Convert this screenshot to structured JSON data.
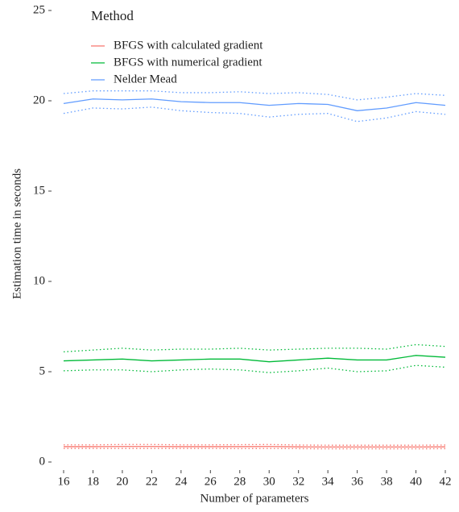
{
  "chart_data": {
    "type": "line",
    "x_label": "Number of parameters",
    "y_label": "Estimation time in seconds",
    "legend_title": "Method",
    "legend": "top-left",
    "grid": false,
    "x": [
      16,
      18,
      20,
      22,
      24,
      26,
      28,
      30,
      32,
      34,
      36,
      38,
      40,
      42
    ],
    "xlim": [
      16,
      42
    ],
    "xticks": [
      16,
      18,
      20,
      22,
      24,
      26,
      28,
      30,
      32,
      34,
      36,
      38,
      40,
      42
    ],
    "ylim": [
      0,
      25
    ],
    "yticks": [
      0,
      5,
      10,
      15,
      20,
      25
    ],
    "series": [
      {
        "name": "BFGS with calculated gradient",
        "color": "#F8766D",
        "values": [
          0.85,
          0.85,
          0.86,
          0.86,
          0.85,
          0.85,
          0.85,
          0.86,
          0.84,
          0.83,
          0.83,
          0.83,
          0.83,
          0.84
        ],
        "upper": [
          0.95,
          0.95,
          0.97,
          0.97,
          0.95,
          0.95,
          0.96,
          0.97,
          0.94,
          0.93,
          0.93,
          0.93,
          0.93,
          0.94
        ],
        "lower": [
          0.75,
          0.75,
          0.75,
          0.75,
          0.75,
          0.75,
          0.74,
          0.75,
          0.74,
          0.73,
          0.73,
          0.73,
          0.73,
          0.74
        ]
      },
      {
        "name": "BFGS with numerical gradient",
        "color": "#00BA38",
        "values": [
          5.6,
          5.65,
          5.7,
          5.6,
          5.65,
          5.7,
          5.7,
          5.55,
          5.65,
          5.75,
          5.65,
          5.65,
          5.9,
          5.8
        ],
        "upper": [
          6.1,
          6.2,
          6.3,
          6.2,
          6.25,
          6.25,
          6.3,
          6.2,
          6.25,
          6.3,
          6.3,
          6.25,
          6.5,
          6.4
        ],
        "lower": [
          5.05,
          5.1,
          5.1,
          5.0,
          5.1,
          5.15,
          5.1,
          4.95,
          5.05,
          5.2,
          5.0,
          5.05,
          5.35,
          5.25
        ]
      },
      {
        "name": "Nelder Mead",
        "color": "#619CFF",
        "values": [
          19.85,
          20.1,
          20.05,
          20.1,
          19.95,
          19.9,
          19.9,
          19.75,
          19.85,
          19.8,
          19.45,
          19.6,
          19.9,
          19.75
        ],
        "upper": [
          20.4,
          20.55,
          20.55,
          20.55,
          20.45,
          20.45,
          20.5,
          20.4,
          20.45,
          20.35,
          20.05,
          20.2,
          20.4,
          20.3
        ],
        "lower": [
          19.3,
          19.6,
          19.55,
          19.65,
          19.45,
          19.35,
          19.3,
          19.1,
          19.25,
          19.3,
          18.85,
          19.05,
          19.4,
          19.25
        ]
      }
    ]
  }
}
